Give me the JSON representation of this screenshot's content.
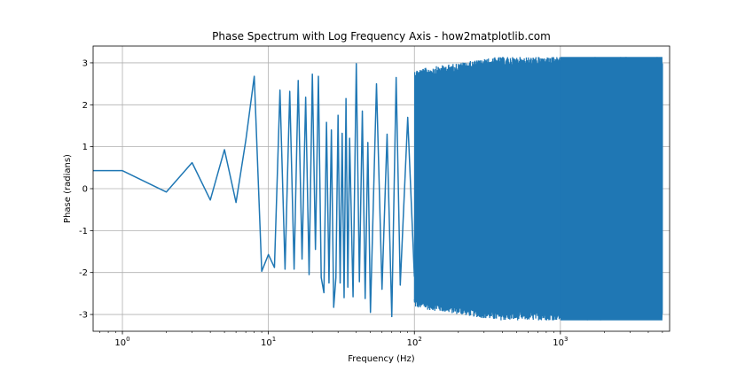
{
  "chart_data": {
    "type": "line",
    "title": "Phase Spectrum with Log Frequency Axis - how2matplotlib.com",
    "xlabel": "Frequency (Hz)",
    "ylabel": "Phase (radians)",
    "xscale": "log",
    "xlim": [
      0.63,
      5600
    ],
    "ylim": [
      -3.4,
      3.4
    ],
    "grid": true,
    "series_color": "#1f77b4",
    "x_ticks": [
      {
        "value": 1,
        "base": "10",
        "exp": "0"
      },
      {
        "value": 10,
        "base": "10",
        "exp": "1"
      },
      {
        "value": 100,
        "base": "10",
        "exp": "2"
      },
      {
        "value": 1000,
        "base": "10",
        "exp": "3"
      }
    ],
    "y_ticks": [
      "-3",
      "-2",
      "-1",
      "0",
      "1",
      "2",
      "3"
    ],
    "series": [
      {
        "x": [
          0,
          1,
          2,
          3,
          4,
          5,
          6,
          7,
          8,
          9,
          10,
          11,
          12,
          13,
          14,
          15,
          16,
          17,
          18,
          19,
          20,
          21,
          22,
          23,
          24,
          25,
          26,
          27,
          28,
          29,
          30,
          31,
          32,
          33,
          34,
          35,
          36,
          38,
          40,
          42,
          44,
          46,
          48,
          50,
          55,
          60,
          65,
          70,
          75,
          80,
          90,
          100
        ],
        "y": [
          0.43,
          0.43,
          -0.08,
          0.62,
          -0.27,
          0.93,
          -0.33,
          1.15,
          2.68,
          -1.97,
          -1.57,
          -1.88,
          2.35,
          -1.92,
          2.32,
          -1.92,
          2.58,
          -1.68,
          2.18,
          -2.05,
          2.73,
          -1.45,
          2.68,
          -2.12,
          -2.48,
          1.58,
          -2.25,
          1.4,
          -2.83,
          -2.12,
          1.75,
          -2.25,
          1.32,
          -2.6,
          2.15,
          -2.35,
          1.2,
          -2.58,
          2.98,
          -2.22,
          1.85,
          -2.62,
          1.1,
          -2.95,
          2.5,
          -2.4,
          1.3,
          -3.05,
          2.65,
          -2.3,
          1.7,
          -2.1
        ]
      }
    ],
    "dense_band": {
      "x_start": 100,
      "x_end": 5000,
      "y_min": -3.14,
      "y_max": 3.14
    }
  }
}
